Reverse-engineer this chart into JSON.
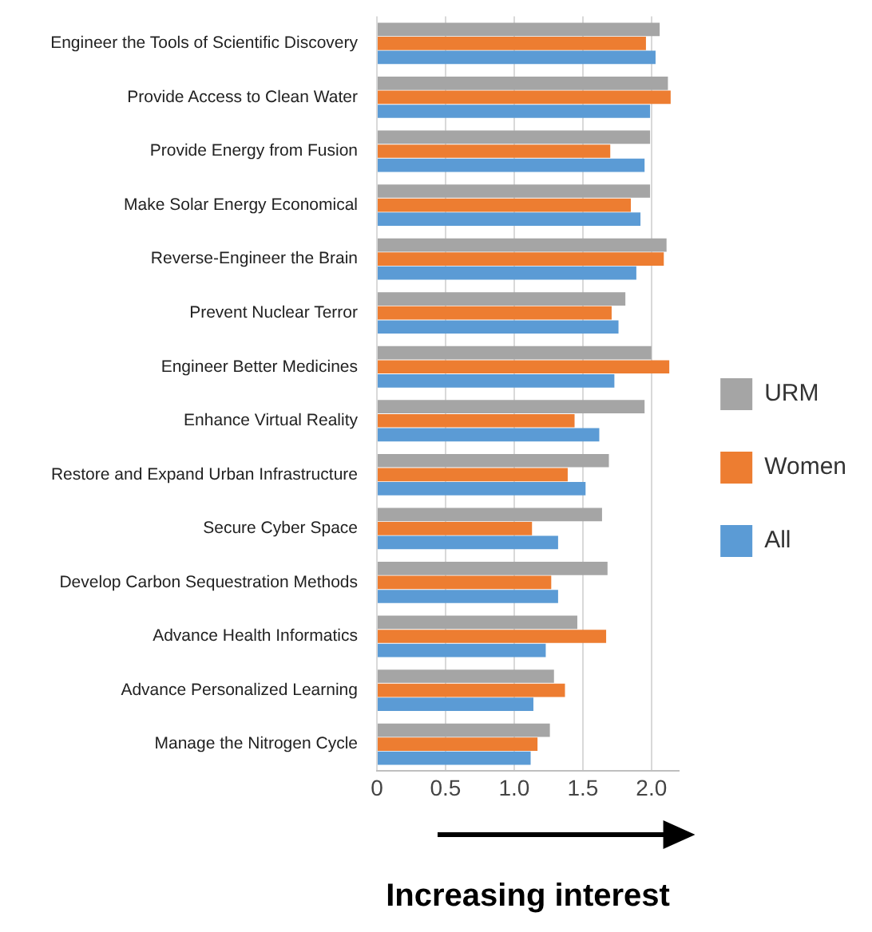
{
  "chart_data": {
    "type": "bar",
    "orientation": "horizontal",
    "xlabel": "Increasing interest",
    "categories": [
      "Engineer the Tools of Scientific Discovery",
      "Provide Access to Clean Water",
      "Provide Energy from Fusion",
      "Make Solar Energy Economical",
      "Reverse-Engineer the Brain",
      "Prevent Nuclear Terror",
      "Engineer Better Medicines",
      "Enhance Virtual Reality",
      "Restore and Expand Urban Infrastructure",
      "Secure Cyber Space",
      "Develop Carbon Sequestration Methods",
      "Advance Health Informatics",
      "Advance Personalized Learning",
      "Manage the Nitrogen Cycle"
    ],
    "series": [
      {
        "name": "URM",
        "color": "#a5a5a5",
        "values": [
          2.06,
          2.12,
          1.99,
          1.99,
          2.11,
          1.81,
          2.0,
          1.95,
          1.69,
          1.64,
          1.68,
          1.46,
          1.29,
          1.26
        ]
      },
      {
        "name": "Women",
        "color": "#ed7d31",
        "values": [
          1.96,
          2.14,
          1.7,
          1.85,
          2.09,
          1.71,
          2.13,
          1.44,
          1.39,
          1.13,
          1.27,
          1.67,
          1.37,
          1.17
        ]
      },
      {
        "name": "All",
        "color": "#5b9bd5",
        "values": [
          2.03,
          1.99,
          1.95,
          1.92,
          1.89,
          1.76,
          1.73,
          1.62,
          1.52,
          1.32,
          1.32,
          1.23,
          1.14,
          1.12
        ]
      }
    ],
    "xlim": [
      0,
      2.2
    ],
    "xticks": [
      {
        "value": 0,
        "label": "0"
      },
      {
        "value": 0.5,
        "label": "0.5"
      },
      {
        "value": 1,
        "label": "1.0"
      },
      {
        "value": 1.5,
        "label": "1.5"
      },
      {
        "value": 2,
        "label": "2.0"
      }
    ],
    "grid": "x",
    "legend": "right"
  }
}
